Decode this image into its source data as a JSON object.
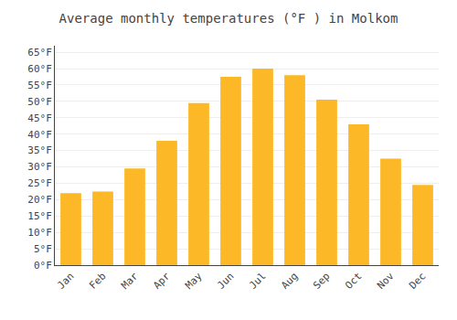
{
  "chart_data": {
    "type": "bar",
    "title": "Average monthly temperatures (°F ) in Molkom",
    "categories": [
      "Jan",
      "Feb",
      "Mar",
      "Apr",
      "May",
      "Jun",
      "Jul",
      "Aug",
      "Sep",
      "Oct",
      "Nov",
      "Dec"
    ],
    "values": [
      22,
      22.5,
      29.5,
      38,
      49.5,
      57.5,
      60,
      58,
      50.5,
      43,
      32.5,
      24.5
    ],
    "color": "#FDB827",
    "ylim": [
      0,
      67
    ],
    "yticks": [
      {
        "value": 0,
        "label": "0°F"
      },
      {
        "value": 5,
        "label": "5°F"
      },
      {
        "value": 10,
        "label": "10°F"
      },
      {
        "value": 15,
        "label": "15°F"
      },
      {
        "value": 20,
        "label": "20°F"
      },
      {
        "value": 25,
        "label": "25°F"
      },
      {
        "value": 30,
        "label": "30°F"
      },
      {
        "value": 35,
        "label": "35°F"
      },
      {
        "value": 40,
        "label": "40°F"
      },
      {
        "value": 45,
        "label": "45°F"
      },
      {
        "value": 50,
        "label": "50°F"
      },
      {
        "value": 55,
        "label": "55°F"
      },
      {
        "value": 60,
        "label": "60°F"
      },
      {
        "value": 65,
        "label": "65°F"
      }
    ],
    "grid": true
  }
}
